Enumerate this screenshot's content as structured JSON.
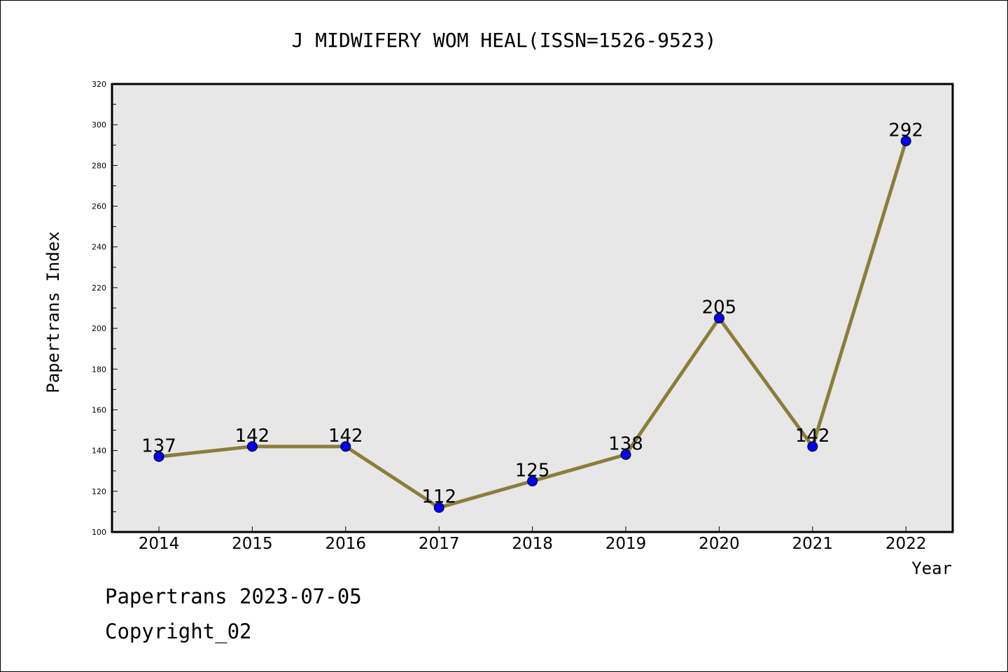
{
  "chart_data": {
    "type": "line",
    "title": "J MIDWIFERY WOM HEAL(ISSN=1526-9523)",
    "xlabel": "Year",
    "ylabel": "Papertrans Index",
    "categories": [
      "2014",
      "2015",
      "2016",
      "2017",
      "2018",
      "2019",
      "2020",
      "2021",
      "2022"
    ],
    "series": [
      {
        "values": [
          137,
          142,
          142,
          112,
          125,
          138,
          205,
          142,
          292
        ]
      }
    ],
    "data_labels": [
      "137",
      "142",
      "142",
      "112",
      "125",
      "138",
      "205",
      "142",
      "292"
    ],
    "ylim": [
      100,
      320
    ],
    "yticks": [
      100,
      120,
      140,
      160,
      180,
      200,
      220,
      240,
      260,
      280,
      300,
      320
    ],
    "grid": false,
    "legend": "none",
    "colors": {
      "line": "#8b7d3a",
      "marker": "#0000ff",
      "plot_background": "#e7e7e7"
    }
  },
  "footer": {
    "date_text": "Papertrans 2023-07-05",
    "copyright_text": "Copyright_02"
  }
}
